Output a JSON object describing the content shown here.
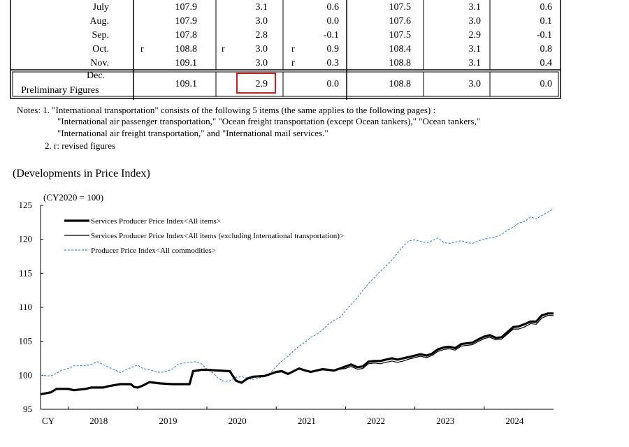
{
  "table": {
    "rows": [
      {
        "label": "July",
        "m1": "",
        "v1": "107.9",
        "m2": "",
        "v2": "3.1",
        "m3": "",
        "v3": "0.6",
        "v4": "107.5",
        "v5": "3.1",
        "v6": "0.6"
      },
      {
        "label": "Aug.",
        "m1": "",
        "v1": "107.9",
        "m2": "",
        "v2": "3.0",
        "m3": "",
        "v3": "0.0",
        "v4": "107.6",
        "v5": "3.0",
        "v6": "0.1"
      },
      {
        "label": "Sep.",
        "m1": "",
        "v1": "107.8",
        "m2": "",
        "v2": "2.8",
        "m3": "",
        "v3": "-0.1",
        "v4": "107.5",
        "v5": "2.9",
        "v6": "-0.1"
      },
      {
        "label": "Oct.",
        "m1": "r",
        "v1": "108.8",
        "m2": "r",
        "v2": "3.0",
        "m3": "r",
        "v3": "0.9",
        "v4": "108.4",
        "v5": "3.1",
        "v6": "0.8"
      },
      {
        "label": "Nov.",
        "m1": "",
        "v1": "109.1",
        "m2": "",
        "v2": "3.0",
        "m3": "r",
        "v3": "0.3",
        "v4": "108.8",
        "v5": "3.1",
        "v6": "0.4"
      }
    ],
    "prelim": {
      "label1": "Dec.",
      "label2": "Preliminary Figures",
      "v1": "109.1",
      "v2": "2.9",
      "v3": "0.0",
      "v4": "108.8",
      "v5": "3.0",
      "v6": "0.0"
    }
  },
  "notes": {
    "line1": "Notes: 1. \"International transportation\" consists of the following 5 items (the same applies to the following pages) :",
    "line2": "\"International air passenger transportation,\" \"Ocean freight transportation (except Ocean tankers),\" \"Ocean tankers,\"",
    "line3": "\"International air freight transportation,\" and \"International mail services.\"",
    "line4": "2. r: revised figures"
  },
  "section_title": "(Developments in Price Index)",
  "chart_data": {
    "type": "line",
    "unit_label": "(CY2020 = 100)",
    "ylim": [
      95,
      125
    ],
    "y_ticks": [
      "125",
      "120",
      "115",
      "110",
      "105",
      "100",
      "95"
    ],
    "x_prefix": "CY",
    "x_ticks": [
      "2018",
      "2019",
      "2020",
      "2021",
      "2022",
      "2023",
      "2024"
    ],
    "grid": false,
    "legend_position": "top-left",
    "series": [
      {
        "name": "Services Producer Price Index<All items>",
        "style": "thick",
        "color": "#000000",
        "points": [
          [
            2017.6,
            97.2
          ],
          [
            2017.75,
            97.5
          ],
          [
            2017.83,
            98.0
          ],
          [
            2018.0,
            98.0
          ],
          [
            2018.08,
            97.8
          ],
          [
            2018.25,
            98.0
          ],
          [
            2018.33,
            98.2
          ],
          [
            2018.5,
            98.2
          ],
          [
            2018.58,
            98.4
          ],
          [
            2018.75,
            98.7
          ],
          [
            2018.9,
            98.7
          ],
          [
            2018.95,
            98.3
          ],
          [
            2019.0,
            98.2
          ],
          [
            2019.08,
            98.5
          ],
          [
            2019.17,
            99.0
          ],
          [
            2019.33,
            98.8
          ],
          [
            2019.5,
            98.7
          ],
          [
            2019.6,
            98.7
          ],
          [
            2019.75,
            98.7
          ],
          [
            2019.8,
            100.6
          ],
          [
            2019.92,
            100.8
          ],
          [
            2020.0,
            100.8
          ],
          [
            2020.17,
            100.7
          ],
          [
            2020.33,
            100.6
          ],
          [
            2020.42,
            99.2
          ],
          [
            2020.5,
            98.9
          ],
          [
            2020.58,
            99.5
          ],
          [
            2020.67,
            99.8
          ],
          [
            2020.83,
            99.9
          ],
          [
            2020.92,
            100.2
          ],
          [
            2021.0,
            100.5
          ],
          [
            2021.08,
            100.6
          ],
          [
            2021.17,
            100.2
          ],
          [
            2021.25,
            100.6
          ],
          [
            2021.33,
            101.0
          ],
          [
            2021.42,
            100.7
          ],
          [
            2021.5,
            100.5
          ],
          [
            2021.58,
            100.7
          ],
          [
            2021.67,
            100.9
          ],
          [
            2021.75,
            100.8
          ],
          [
            2021.83,
            100.7
          ],
          [
            2021.92,
            101.0
          ],
          [
            2022.0,
            101.3
          ],
          [
            2022.08,
            101.6
          ],
          [
            2022.17,
            101.2
          ],
          [
            2022.25,
            101.3
          ],
          [
            2022.33,
            102.0
          ],
          [
            2022.42,
            102.1
          ],
          [
            2022.5,
            102.1
          ],
          [
            2022.58,
            102.3
          ],
          [
            2022.67,
            102.5
          ],
          [
            2022.75,
            102.3
          ],
          [
            2022.83,
            102.5
          ],
          [
            2022.92,
            102.7
          ],
          [
            2023.0,
            102.9
          ],
          [
            2023.08,
            103.1
          ],
          [
            2023.17,
            102.9
          ],
          [
            2023.25,
            103.2
          ],
          [
            2023.33,
            103.8
          ],
          [
            2023.42,
            104.1
          ],
          [
            2023.5,
            104.2
          ],
          [
            2023.58,
            104.0
          ],
          [
            2023.67,
            104.6
          ],
          [
            2023.75,
            104.7
          ],
          [
            2023.83,
            104.8
          ],
          [
            2023.92,
            105.3
          ],
          [
            2024.0,
            105.7
          ],
          [
            2024.08,
            105.9
          ],
          [
            2024.17,
            105.5
          ],
          [
            2024.25,
            105.6
          ],
          [
            2024.33,
            106.3
          ],
          [
            2024.42,
            107.1
          ],
          [
            2024.5,
            107.2
          ],
          [
            2024.58,
            107.5
          ],
          [
            2024.67,
            107.9
          ],
          [
            2024.75,
            107.9
          ],
          [
            2024.83,
            108.8
          ],
          [
            2024.92,
            109.1
          ],
          [
            2025.0,
            109.1
          ]
        ]
      },
      {
        "name": "Services Producer Price Index<All items (excluding International transportation)>",
        "style": "thin",
        "color": "#000000",
        "points": [
          [
            2017.6,
            97.2
          ],
          [
            2017.75,
            97.5
          ],
          [
            2017.83,
            98.0
          ],
          [
            2018.0,
            98.0
          ],
          [
            2018.08,
            97.8
          ],
          [
            2018.25,
            98.0
          ],
          [
            2018.33,
            98.2
          ],
          [
            2018.5,
            98.2
          ],
          [
            2018.58,
            98.4
          ],
          [
            2018.75,
            98.7
          ],
          [
            2018.9,
            98.7
          ],
          [
            2018.95,
            98.3
          ],
          [
            2019.0,
            98.2
          ],
          [
            2019.08,
            98.5
          ],
          [
            2019.17,
            99.0
          ],
          [
            2019.33,
            98.8
          ],
          [
            2019.5,
            98.7
          ],
          [
            2019.6,
            98.7
          ],
          [
            2019.75,
            98.7
          ],
          [
            2019.8,
            100.6
          ],
          [
            2019.92,
            100.8
          ],
          [
            2020.0,
            100.8
          ],
          [
            2020.17,
            100.7
          ],
          [
            2020.33,
            100.6
          ],
          [
            2020.42,
            99.2
          ],
          [
            2020.5,
            98.9
          ],
          [
            2020.58,
            99.5
          ],
          [
            2020.67,
            99.8
          ],
          [
            2020.83,
            99.9
          ],
          [
            2020.92,
            100.2
          ],
          [
            2021.0,
            100.5
          ],
          [
            2021.08,
            100.6
          ],
          [
            2021.17,
            100.2
          ],
          [
            2021.25,
            100.6
          ],
          [
            2021.33,
            101.0
          ],
          [
            2021.42,
            100.7
          ],
          [
            2021.5,
            100.5
          ],
          [
            2021.58,
            100.7
          ],
          [
            2021.67,
            100.9
          ],
          [
            2021.75,
            100.8
          ],
          [
            2021.83,
            100.6
          ],
          [
            2021.92,
            100.9
          ],
          [
            2022.0,
            101.0
          ],
          [
            2022.08,
            101.3
          ],
          [
            2022.17,
            100.9
          ],
          [
            2022.25,
            101.0
          ],
          [
            2022.33,
            101.7
          ],
          [
            2022.42,
            101.8
          ],
          [
            2022.5,
            101.7
          ],
          [
            2022.58,
            101.9
          ],
          [
            2022.67,
            102.1
          ],
          [
            2022.75,
            101.9
          ],
          [
            2022.83,
            102.1
          ],
          [
            2022.92,
            102.4
          ],
          [
            2023.0,
            102.6
          ],
          [
            2023.08,
            102.8
          ],
          [
            2023.17,
            102.6
          ],
          [
            2023.25,
            102.9
          ],
          [
            2023.33,
            103.5
          ],
          [
            2023.42,
            103.8
          ],
          [
            2023.5,
            103.9
          ],
          [
            2023.58,
            103.7
          ],
          [
            2023.67,
            104.3
          ],
          [
            2023.75,
            104.4
          ],
          [
            2023.83,
            104.5
          ],
          [
            2023.92,
            105.0
          ],
          [
            2024.0,
            105.4
          ],
          [
            2024.08,
            105.6
          ],
          [
            2024.17,
            105.2
          ],
          [
            2024.25,
            105.3
          ],
          [
            2024.33,
            106.0
          ],
          [
            2024.42,
            106.8
          ],
          [
            2024.5,
            106.8
          ],
          [
            2024.58,
            107.1
          ],
          [
            2024.67,
            107.6
          ],
          [
            2024.75,
            107.5
          ],
          [
            2024.83,
            108.4
          ],
          [
            2024.92,
            108.8
          ],
          [
            2025.0,
            108.8
          ]
        ]
      },
      {
        "name": "Producer Price Index<All commodities>",
        "style": "dashed",
        "color": "#4a8fd6",
        "points": [
          [
            2017.6,
            100.0
          ],
          [
            2017.75,
            99.9
          ],
          [
            2017.83,
            100.3
          ],
          [
            2017.92,
            100.8
          ],
          [
            2018.0,
            101.0
          ],
          [
            2018.08,
            101.4
          ],
          [
            2018.25,
            101.4
          ],
          [
            2018.33,
            101.6
          ],
          [
            2018.42,
            102.0
          ],
          [
            2018.5,
            101.6
          ],
          [
            2018.58,
            101.2
          ],
          [
            2018.67,
            100.8
          ],
          [
            2018.75,
            100.4
          ],
          [
            2018.83,
            100.8
          ],
          [
            2018.92,
            101.2
          ],
          [
            2019.0,
            101.5
          ],
          [
            2019.08,
            101.0
          ],
          [
            2019.17,
            100.8
          ],
          [
            2019.25,
            100.6
          ],
          [
            2019.33,
            100.4
          ],
          [
            2019.42,
            100.6
          ],
          [
            2019.5,
            100.9
          ],
          [
            2019.58,
            101.6
          ],
          [
            2019.67,
            101.8
          ],
          [
            2019.75,
            101.9
          ],
          [
            2019.83,
            102.0
          ],
          [
            2019.92,
            101.7
          ],
          [
            2020.0,
            100.9
          ],
          [
            2020.08,
            100.4
          ],
          [
            2020.17,
            99.5
          ],
          [
            2020.25,
            99.1
          ],
          [
            2020.33,
            99.2
          ],
          [
            2020.42,
            99.7
          ],
          [
            2020.5,
            99.8
          ],
          [
            2020.58,
            99.6
          ],
          [
            2020.67,
            99.4
          ],
          [
            2020.75,
            99.6
          ],
          [
            2020.83,
            99.8
          ],
          [
            2020.92,
            100.4
          ],
          [
            2021.0,
            101.3
          ],
          [
            2021.08,
            102.1
          ],
          [
            2021.17,
            102.8
          ],
          [
            2021.25,
            103.6
          ],
          [
            2021.33,
            104.3
          ],
          [
            2021.42,
            104.9
          ],
          [
            2021.5,
            105.6
          ],
          [
            2021.58,
            106.0
          ],
          [
            2021.67,
            106.7
          ],
          [
            2021.75,
            107.5
          ],
          [
            2021.83,
            108.1
          ],
          [
            2021.92,
            108.5
          ],
          [
            2022.0,
            109.5
          ],
          [
            2022.08,
            110.4
          ],
          [
            2022.17,
            111.4
          ],
          [
            2022.25,
            112.5
          ],
          [
            2022.33,
            113.5
          ],
          [
            2022.42,
            114.4
          ],
          [
            2022.5,
            115.3
          ],
          [
            2022.58,
            116.0
          ],
          [
            2022.67,
            117.0
          ],
          [
            2022.75,
            118.0
          ],
          [
            2022.83,
            119.0
          ],
          [
            2022.92,
            119.8
          ],
          [
            2023.0,
            119.9
          ],
          [
            2023.08,
            119.7
          ],
          [
            2023.17,
            119.5
          ],
          [
            2023.25,
            119.8
          ],
          [
            2023.33,
            120.2
          ],
          [
            2023.42,
            119.5
          ],
          [
            2023.5,
            119.4
          ],
          [
            2023.58,
            119.6
          ],
          [
            2023.67,
            119.8
          ],
          [
            2023.75,
            119.5
          ],
          [
            2023.83,
            119.4
          ],
          [
            2023.92,
            119.8
          ],
          [
            2024.0,
            120.0
          ],
          [
            2024.08,
            120.2
          ],
          [
            2024.17,
            120.4
          ],
          [
            2024.25,
            120.7
          ],
          [
            2024.33,
            121.3
          ],
          [
            2024.42,
            121.8
          ],
          [
            2024.5,
            122.4
          ],
          [
            2024.58,
            122.6
          ],
          [
            2024.67,
            123.3
          ],
          [
            2024.75,
            123.0
          ],
          [
            2024.83,
            123.5
          ],
          [
            2024.92,
            124.0
          ],
          [
            2025.0,
            124.5
          ]
        ]
      }
    ]
  }
}
